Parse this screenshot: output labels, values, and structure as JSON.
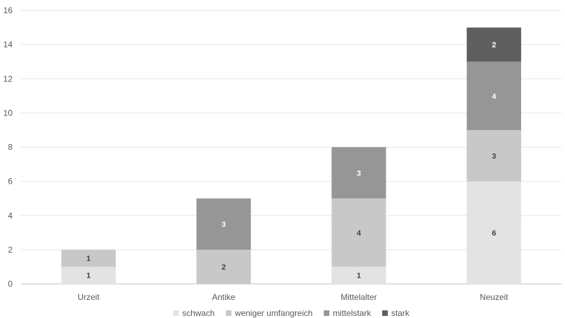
{
  "chart_data": {
    "type": "bar",
    "stacked": true,
    "categories": [
      "Urzeit",
      "Antike",
      "Mittelalter",
      "Neuzeit"
    ],
    "series": [
      {
        "name": "schwach",
        "values": [
          1,
          0,
          1,
          6
        ],
        "color": "#e3e3e3"
      },
      {
        "name": "weniger umfangreich",
        "values": [
          1,
          2,
          4,
          3
        ],
        "color": "#c8c8c8"
      },
      {
        "name": "mittelstark",
        "values": [
          0,
          3,
          3,
          4
        ],
        "color": "#969696"
      },
      {
        "name": "stark",
        "values": [
          0,
          0,
          0,
          2
        ],
        "color": "#5f5f5f"
      }
    ],
    "ylim": [
      0,
      16
    ],
    "yticks": [
      0,
      2,
      4,
      6,
      8,
      10,
      12,
      14,
      16
    ],
    "grid": true,
    "legend_position": "bottom",
    "data_labels": true
  }
}
